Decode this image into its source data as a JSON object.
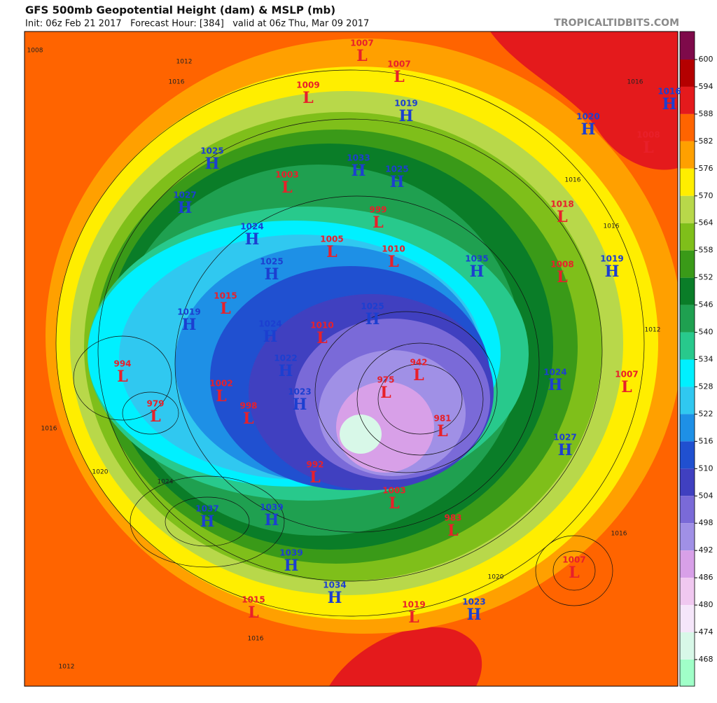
{
  "header": {
    "title": "GFS 500mb Geopotential Height (dam) & MSLP (mb)",
    "subtitle": "Init: 06z Feb 21 2017   Forecast Hour: [384]   valid at 06z Thu, Mar 09 2017",
    "watermark": "TROPICALTIDBITS.COM"
  },
  "colorbar": {
    "ticks": [
      600,
      594,
      588,
      582,
      576,
      570,
      564,
      558,
      552,
      546,
      540,
      534,
      528,
      522,
      516,
      510,
      504,
      498,
      492,
      486,
      480,
      474,
      468
    ],
    "colors": [
      "#7e0a4a",
      "#b40000",
      "#e41a1c",
      "#ff6400",
      "#ffa000",
      "#ffee00",
      "#b8d84a",
      "#7fbf1a",
      "#3a9a18",
      "#0a7d28",
      "#1fa050",
      "#28c98c",
      "#00f0ff",
      "#30c8f0",
      "#1e90e6",
      "#2050d0",
      "#4040c0",
      "#7a6ad8",
      "#a090e6",
      "#d8a0e8",
      "#f0c8f0",
      "#f5e6fa",
      "#d8f8e8",
      "#a0ffc8"
    ]
  },
  "centers": [
    {
      "letter": "L",
      "value": 1007
    },
    {
      "letter": "L",
      "value": 1007
    },
    {
      "letter": "L",
      "value": 1009
    },
    {
      "letter": "H",
      "value": 1019
    },
    {
      "letter": "H",
      "value": 1025
    },
    {
      "letter": "L",
      "value": 1003
    },
    {
      "letter": "H",
      "value": 1033
    },
    {
      "letter": "H",
      "value": 1025
    },
    {
      "letter": "H",
      "value": 1027
    },
    {
      "letter": "L",
      "value": 999
    },
    {
      "letter": "H",
      "value": 1024
    },
    {
      "letter": "L",
      "value": 1005
    },
    {
      "letter": "L",
      "value": 1010
    },
    {
      "letter": "H",
      "value": 1025
    },
    {
      "letter": "L",
      "value": 1015
    },
    {
      "letter": "H",
      "value": 1019
    },
    {
      "letter": "H",
      "value": 1024
    },
    {
      "letter": "L",
      "value": 1010
    },
    {
      "letter": "H",
      "value": 1025
    },
    {
      "letter": "L",
      "value": 994
    },
    {
      "letter": "H",
      "value": 1022
    },
    {
      "letter": "L",
      "value": 942
    },
    {
      "letter": "L",
      "value": 975
    },
    {
      "letter": "L",
      "value": 1002
    },
    {
      "letter": "H",
      "value": 1023
    },
    {
      "letter": "L",
      "value": 998
    },
    {
      "letter": "L",
      "value": 979
    },
    {
      "letter": "L",
      "value": 981
    },
    {
      "letter": "L",
      "value": 992
    },
    {
      "letter": "L",
      "value": 1003
    },
    {
      "letter": "H",
      "value": 1037
    },
    {
      "letter": "H",
      "value": 1039
    },
    {
      "letter": "L",
      "value": 983
    },
    {
      "letter": "H",
      "value": 1039
    },
    {
      "letter": "H",
      "value": 1034
    },
    {
      "letter": "H",
      "value": 1023
    },
    {
      "letter": "L",
      "value": 1015
    },
    {
      "letter": "L",
      "value": 1019
    },
    {
      "letter": "L",
      "value": 1007
    },
    {
      "letter": "H",
      "value": 1027
    },
    {
      "letter": "H",
      "value": 1024
    },
    {
      "letter": "L",
      "value": 1007
    },
    {
      "letter": "H",
      "value": 1019
    },
    {
      "letter": "H",
      "value": 1035
    },
    {
      "letter": "L",
      "value": 1008
    },
    {
      "letter": "L",
      "value": 1018
    },
    {
      "letter": "H",
      "value": 1020
    },
    {
      "letter": "H",
      "value": 1016
    },
    {
      "letter": "L",
      "value": 1008
    }
  ],
  "isobar_labels": [
    1008,
    1012,
    1016,
    1016,
    1020,
    1024,
    1012,
    1016,
    1020,
    1016,
    1012,
    1016,
    1016,
    1016
  ]
}
